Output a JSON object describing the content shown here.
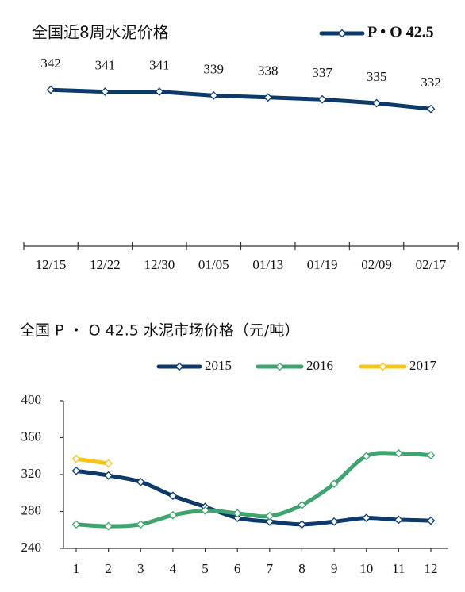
{
  "chart_data": [
    {
      "type": "line",
      "title": "全国近8周水泥价格",
      "categories": [
        "12/15",
        "12/22",
        "12/30",
        "01/05",
        "01/13",
        "01/19",
        "02/09",
        "02/17"
      ],
      "series": [
        {
          "name": "P • O 42.5",
          "color": "#0d3a6b",
          "values": [
            342,
            341,
            341,
            339,
            338,
            337,
            335,
            332
          ]
        }
      ],
      "ylim": [
        260,
        360
      ],
      "data_labels": true,
      "legend": "top-right"
    },
    {
      "type": "line",
      "title": "全国 P ・ O 42.5 水泥市场价格（元/吨）",
      "categories": [
        "1",
        "2",
        "3",
        "4",
        "5",
        "6",
        "7",
        "8",
        "9",
        "10",
        "11",
        "12"
      ],
      "series": [
        {
          "name": "2015",
          "color": "#0d3a6b",
          "values": [
            324,
            319,
            312,
            297,
            285,
            273,
            269,
            266,
            269,
            273,
            271,
            270
          ]
        },
        {
          "name": "2016",
          "color": "#41a36f",
          "values": [
            266,
            264,
            266,
            276,
            281,
            278,
            275,
            287,
            310,
            340,
            343,
            341
          ]
        },
        {
          "name": "2017",
          "color": "#f5c518",
          "values": [
            337,
            332,
            null,
            null,
            null,
            null,
            null,
            null,
            null,
            null,
            null,
            null
          ]
        }
      ],
      "ylim": [
        240,
        400
      ],
      "yticks": [
        240,
        280,
        320,
        360,
        400
      ],
      "legend": "top"
    }
  ]
}
